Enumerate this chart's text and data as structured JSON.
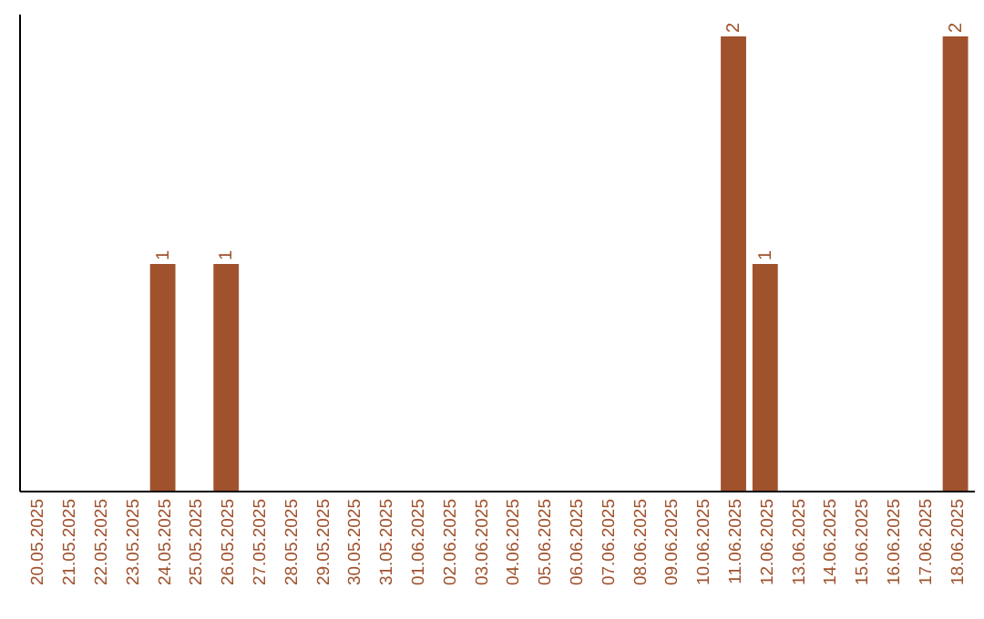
{
  "chart_data": {
    "type": "bar",
    "categories": [
      "20.05.2025",
      "21.05.2025",
      "22.05.2025",
      "23.05.2025",
      "24.05.2025",
      "25.05.2025",
      "26.05.2025",
      "27.05.2025",
      "28.05.2025",
      "29.05.2025",
      "30.05.2025",
      "31.05.2025",
      "01.06.2025",
      "02.06.2025",
      "03.06.2025",
      "04.06.2025",
      "05.06.2025",
      "06.06.2025",
      "07.06.2025",
      "08.06.2025",
      "09.06.2025",
      "10.06.2025",
      "11.06.2025",
      "12.06.2025",
      "13.06.2025",
      "14.06.2025",
      "15.06.2025",
      "16.06.2025",
      "17.06.2025",
      "18.06.2025"
    ],
    "values": [
      0,
      0,
      0,
      0,
      1,
      0,
      1,
      0,
      0,
      0,
      0,
      0,
      0,
      0,
      0,
      0,
      0,
      0,
      0,
      0,
      0,
      0,
      2,
      1,
      0,
      0,
      0,
      0,
      0,
      2
    ],
    "value_labels": [
      null,
      null,
      null,
      null,
      "1",
      null,
      "1",
      null,
      null,
      null,
      null,
      null,
      null,
      null,
      null,
      null,
      null,
      null,
      null,
      null,
      null,
      null,
      "2",
      "1",
      null,
      null,
      null,
      null,
      null,
      "2"
    ],
    "color": "#a0522d"
  }
}
